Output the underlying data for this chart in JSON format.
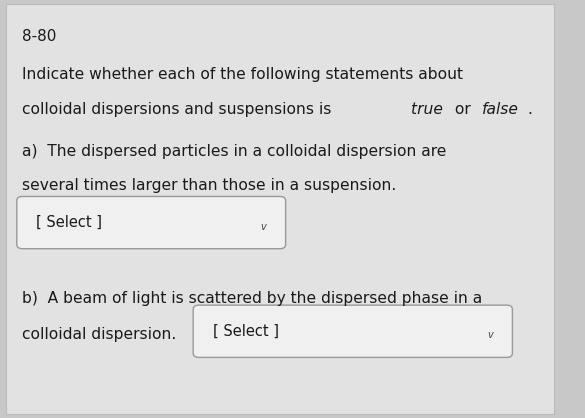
{
  "background_color": "#c8c8c8",
  "card_color": "#e2e2e2",
  "text_color": "#1a1a1a",
  "problem_number": "8-80",
  "intro_line1": "Indicate whether each of the following statements about",
  "intro_line2_normal": "colloidal dispersions and suspensions is ",
  "intro_italic1": "true",
  "intro_mid": " or ",
  "intro_italic2": "false",
  "intro_end": ".",
  "part_a_line1": "a)  The dispersed particles in a colloidal dispersion are",
  "part_a_line2": "several times larger than those in a suspension.",
  "part_b_line1": "b)  A beam of light is scattered by the dispersed phase in a",
  "part_b_line2_pre": "colloidal dispersion.",
  "select_text": "[ Select ]",
  "dropdown_color": "#f0f0f0",
  "dropdown_border": "#999999",
  "font_size_number": 11,
  "font_size_body": 11.2,
  "font_size_select": 10.5
}
